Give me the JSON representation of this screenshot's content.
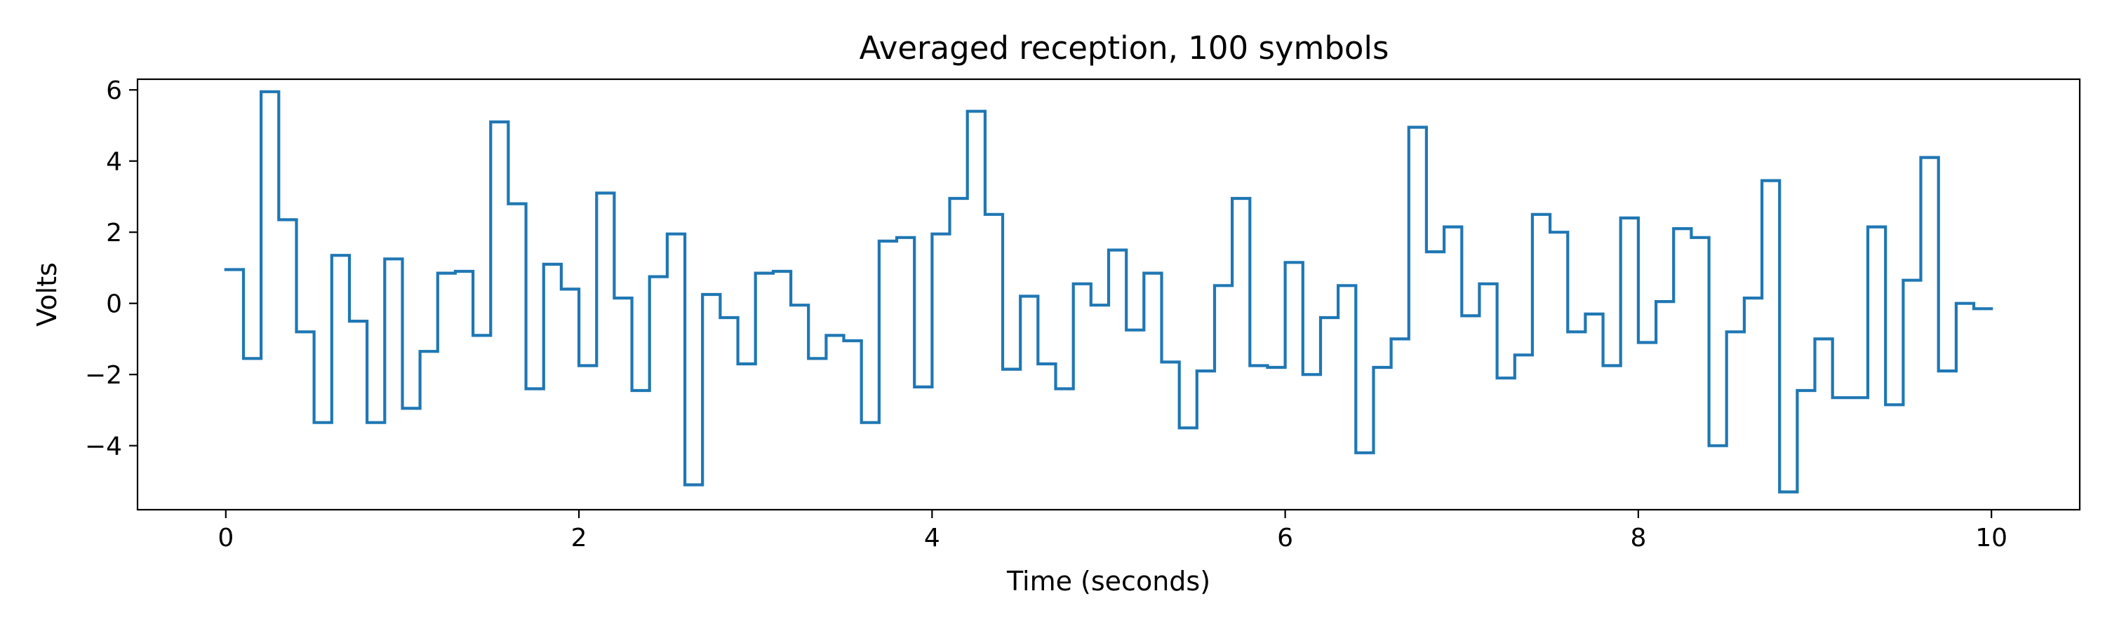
{
  "chart_data": {
    "type": "line",
    "step": "post",
    "title": "Averaged reception, 100 symbols",
    "xlabel": "Time (seconds)",
    "ylabel": "Volts",
    "xlim": [
      -0.5,
      10.5
    ],
    "ylim": [
      -5.8,
      6.3
    ],
    "xticks": [
      0,
      2,
      4,
      6,
      8,
      10
    ],
    "yticks": [
      -4,
      -2,
      0,
      2,
      4,
      6
    ],
    "xticklabels": [
      "0",
      "2",
      "4",
      "6",
      "8",
      "10"
    ],
    "yticklabels": [
      "−4",
      "−2",
      "0",
      "2",
      "4",
      "6"
    ],
    "grid": false,
    "symbol_period": 0.1,
    "series": [
      {
        "color": "#1f77b4",
        "values": [
          0.95,
          -1.55,
          5.95,
          2.35,
          -0.8,
          -3.35,
          1.35,
          -0.5,
          -3.35,
          1.25,
          -2.95,
          -1.35,
          0.85,
          0.9,
          -0.9,
          5.1,
          2.8,
          -2.4,
          1.1,
          0.4,
          -1.75,
          3.1,
          0.15,
          -2.45,
          0.75,
          1.95,
          -5.1,
          0.25,
          -0.4,
          -1.7,
          0.85,
          0.9,
          -0.05,
          -1.55,
          -0.9,
          -1.05,
          -3.35,
          1.75,
          1.85,
          -2.35,
          1.95,
          2.95,
          5.4,
          2.5,
          -1.85,
          0.2,
          -1.7,
          -2.4,
          0.55,
          -0.05,
          1.5,
          -0.75,
          0.85,
          -1.65,
          -3.5,
          -1.9,
          0.5,
          2.95,
          -1.75,
          -1.8,
          1.15,
          -2.0,
          -0.4,
          0.5,
          -4.2,
          -1.8,
          -1.0,
          4.95,
          1.45,
          2.15,
          -0.35,
          0.55,
          -2.1,
          -1.45,
          2.5,
          2.0,
          -0.8,
          -0.3,
          -1.75,
          2.4,
          -1.1,
          0.05,
          2.1,
          1.85,
          -4.0,
          -0.8,
          0.15,
          3.45,
          -5.3,
          -2.45,
          -1.0,
          -2.65,
          -2.65,
          2.15,
          -2.85,
          0.65,
          4.1,
          -1.9,
          0.0,
          -0.15
        ]
      }
    ]
  }
}
